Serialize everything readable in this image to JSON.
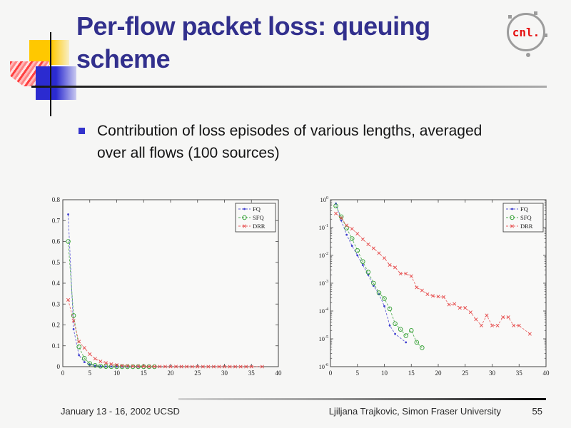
{
  "slide": {
    "title": "Per-flow packet loss: queuing scheme",
    "bullet_text": "Contribution of loss episodes of various lengths, averaged over all flows (100 sources)",
    "footer_left": "January 13 - 16, 2002 UCSD",
    "footer_right": "Ljiljana Trajkovic, Simon Fraser University",
    "page_number": "55",
    "logo_text": "cnl."
  },
  "colors": {
    "title_text": "#32308d",
    "bullet_marker": "#3333cc",
    "logo_red": "#e51212",
    "accent_yellow": "#ffc800",
    "accent_blue": "#2b2bd0",
    "accent_red": "#ff4040",
    "fq": "#3d3dcf",
    "sfq": "#2f9e2f",
    "drr": "#e64a4a",
    "axis": "#444444"
  },
  "chart_data": [
    {
      "type": "line",
      "title": "",
      "xlabel": "",
      "ylabel": "",
      "yscale": "linear",
      "xlim": [
        0,
        40
      ],
      "ylim": [
        0,
        0.8
      ],
      "xticks": [
        0,
        5,
        10,
        15,
        20,
        25,
        30,
        35,
        40
      ],
      "yticks": [
        0,
        0.1,
        0.2,
        0.3,
        0.4,
        0.5,
        0.6,
        0.7,
        0.8
      ],
      "grid": false,
      "legend_position": "top-right",
      "legend": [
        "FQ",
        "SFQ",
        "DRR"
      ],
      "series": [
        {
          "name": "FQ",
          "color": "#3d3dcf",
          "marker": "dot",
          "linestyle": "dashed",
          "points": [
            [
              1,
              0.73
            ],
            [
              2,
              0.18
            ],
            [
              3,
              0.055
            ],
            [
              4,
              0.022
            ],
            [
              5,
              0.01
            ],
            [
              6,
              0.0045
            ],
            [
              7,
              0.002
            ],
            [
              8,
              0.0008
            ],
            [
              9,
              0.0004
            ],
            [
              10,
              0.00015
            ],
            [
              11,
              3e-05
            ],
            [
              12,
              1.5e-05
            ],
            [
              14,
              7.5e-06
            ]
          ]
        },
        {
          "name": "SFQ",
          "color": "#2f9e2f",
          "marker": "circle",
          "linestyle": "dashed",
          "points": [
            [
              1,
              0.6
            ],
            [
              2,
              0.245
            ],
            [
              3,
              0.095
            ],
            [
              4,
              0.04
            ],
            [
              5,
              0.015
            ],
            [
              6,
              0.006
            ],
            [
              7,
              0.0025
            ],
            [
              8,
              0.001
            ],
            [
              9,
              0.00045
            ],
            [
              10,
              0.00028
            ],
            [
              11,
              0.00012
            ],
            [
              12,
              3.5e-05
            ],
            [
              13,
              2.2e-05
            ],
            [
              14,
              1.3e-05
            ],
            [
              15,
              2e-05
            ],
            [
              16,
              7.5e-06
            ],
            [
              17,
              4.8e-06
            ]
          ]
        },
        {
          "name": "DRR",
          "color": "#e64a4a",
          "marker": "x",
          "linestyle": "dashed",
          "points": [
            [
              1,
              0.32
            ],
            [
              2,
              0.22
            ],
            [
              3,
              0.12
            ],
            [
              4,
              0.09
            ],
            [
              5,
              0.06
            ],
            [
              6,
              0.038
            ],
            [
              7,
              0.025
            ],
            [
              8,
              0.018
            ],
            [
              9,
              0.012
            ],
            [
              10,
              0.008
            ],
            [
              11,
              0.0045
            ],
            [
              12,
              0.0037
            ],
            [
              13,
              0.0022
            ],
            [
              14,
              0.0022
            ],
            [
              15,
              0.0018
            ],
            [
              16,
              0.0007
            ],
            [
              17,
              0.00055
            ],
            [
              18,
              0.0004
            ],
            [
              19,
              0.00035
            ],
            [
              20,
              0.00033
            ],
            [
              21,
              0.00032
            ],
            [
              22,
              0.00017
            ],
            [
              23,
              0.00018
            ],
            [
              24,
              0.00013
            ],
            [
              25,
              0.00013
            ],
            [
              26,
              9e-05
            ],
            [
              27,
              5e-05
            ],
            [
              28,
              3e-05
            ],
            [
              29,
              7e-05
            ],
            [
              30,
              3e-05
            ],
            [
              31,
              3e-05
            ],
            [
              32,
              6e-05
            ],
            [
              33,
              6e-05
            ],
            [
              34,
              3e-05
            ],
            [
              35,
              3e-05
            ],
            [
              37,
              1.5e-05
            ]
          ]
        }
      ]
    },
    {
      "type": "line",
      "title": "",
      "xlabel": "",
      "ylabel": "",
      "yscale": "log",
      "xlim": [
        0,
        40
      ],
      "ylim": [
        1e-06,
        1
      ],
      "xticks": [
        0,
        5,
        10,
        15,
        20,
        25,
        30,
        35,
        40
      ],
      "yticks": [
        0,
        -1,
        -2,
        -3,
        -4,
        -5,
        -6
      ],
      "grid": false,
      "legend_position": "top-right",
      "legend": [
        "FQ",
        "SFQ",
        "DRR"
      ],
      "series": [
        {
          "name": "FQ",
          "color": "#3d3dcf",
          "marker": "dot",
          "linestyle": "dashed",
          "points": [
            [
              1,
              0.73
            ],
            [
              2,
              0.18
            ],
            [
              3,
              0.055
            ],
            [
              4,
              0.022
            ],
            [
              5,
              0.01
            ],
            [
              6,
              0.0045
            ],
            [
              7,
              0.002
            ],
            [
              8,
              0.0008
            ],
            [
              9,
              0.0004
            ],
            [
              10,
              0.00015
            ],
            [
              11,
              3e-05
            ],
            [
              12,
              1.5e-05
            ],
            [
              14,
              7.5e-06
            ]
          ]
        },
        {
          "name": "SFQ",
          "color": "#2f9e2f",
          "marker": "circle",
          "linestyle": "dashed",
          "points": [
            [
              1,
              0.6
            ],
            [
              2,
              0.245
            ],
            [
              3,
              0.095
            ],
            [
              4,
              0.04
            ],
            [
              5,
              0.015
            ],
            [
              6,
              0.006
            ],
            [
              7,
              0.0025
            ],
            [
              8,
              0.001
            ],
            [
              9,
              0.00045
            ],
            [
              10,
              0.00028
            ],
            [
              11,
              0.00012
            ],
            [
              12,
              3.5e-05
            ],
            [
              13,
              2.2e-05
            ],
            [
              14,
              1.3e-05
            ],
            [
              15,
              2e-05
            ],
            [
              16,
              7.5e-06
            ],
            [
              17,
              4.8e-06
            ]
          ]
        },
        {
          "name": "DRR",
          "color": "#e64a4a",
          "marker": "x",
          "linestyle": "dashed",
          "points": [
            [
              1,
              0.32
            ],
            [
              2,
              0.22
            ],
            [
              3,
              0.12
            ],
            [
              4,
              0.09
            ],
            [
              5,
              0.06
            ],
            [
              6,
              0.038
            ],
            [
              7,
              0.025
            ],
            [
              8,
              0.018
            ],
            [
              9,
              0.012
            ],
            [
              10,
              0.008
            ],
            [
              11,
              0.0045
            ],
            [
              12,
              0.0037
            ],
            [
              13,
              0.0022
            ],
            [
              14,
              0.0022
            ],
            [
              15,
              0.0018
            ],
            [
              16,
              0.0007
            ],
            [
              17,
              0.00055
            ],
            [
              18,
              0.0004
            ],
            [
              19,
              0.00035
            ],
            [
              20,
              0.00033
            ],
            [
              21,
              0.00032
            ],
            [
              22,
              0.00017
            ],
            [
              23,
              0.00018
            ],
            [
              24,
              0.00013
            ],
            [
              25,
              0.00013
            ],
            [
              26,
              9e-05
            ],
            [
              27,
              5e-05
            ],
            [
              28,
              3e-05
            ],
            [
              29,
              7e-05
            ],
            [
              30,
              3e-05
            ],
            [
              31,
              3e-05
            ],
            [
              32,
              6e-05
            ],
            [
              33,
              6e-05
            ],
            [
              34,
              3e-05
            ],
            [
              35,
              3e-05
            ],
            [
              37,
              1.5e-05
            ]
          ]
        }
      ]
    }
  ]
}
